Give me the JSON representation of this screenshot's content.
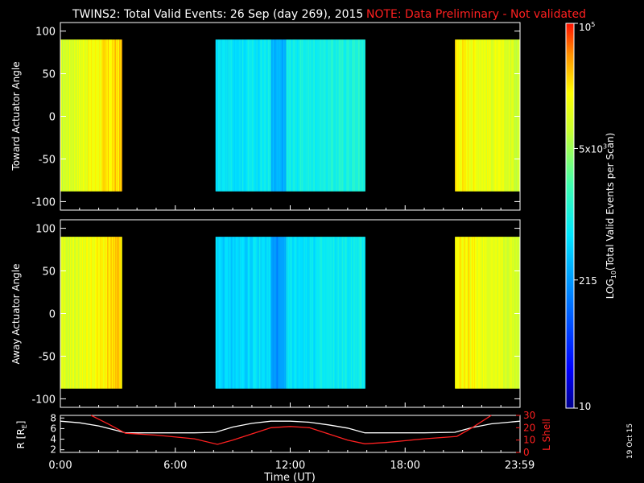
{
  "header": {
    "title": "TWINS2: Total Valid Events: 26 Sep (day 269), 2015",
    "note": "NOTE: Data Preliminary - Not validated"
  },
  "stamp": "19 Oct 15",
  "chart_data": [
    {
      "type": "heatmap",
      "name": "toward-panel",
      "ylabel": "Toward Actuator Angle",
      "ylim": [
        -110,
        110
      ],
      "yticks": [
        100,
        50,
        0,
        -50,
        -100
      ],
      "xlim_hours": [
        0,
        24
      ],
      "angle_range": [
        -88,
        90
      ],
      "data_blocks": [
        {
          "start_hour": 0.0,
          "end_hour": 3.2,
          "log_level_start": 0.74,
          "log_level_end": 0.86
        },
        {
          "start_hour": 8.1,
          "end_hour": 15.9,
          "log_level_start": 0.45,
          "log_level_end": 0.52
        },
        {
          "start_hour": 20.6,
          "end_hour": 23.99,
          "log_level_start": 0.83,
          "log_level_end": 0.74
        }
      ]
    },
    {
      "type": "heatmap",
      "name": "away-panel",
      "ylabel": "Away Actuator Angle",
      "ylim": [
        -110,
        110
      ],
      "yticks": [
        100,
        50,
        0,
        -50,
        -100
      ],
      "xlim_hours": [
        0,
        24
      ],
      "angle_range": [
        -88,
        90
      ],
      "data_blocks": [
        {
          "start_hour": 0.0,
          "end_hour": 3.2,
          "log_level_start": 0.74,
          "log_level_end": 0.86
        },
        {
          "start_hour": 8.1,
          "end_hour": 15.9,
          "log_level_start": 0.42,
          "log_level_end": 0.48
        },
        {
          "start_hour": 20.6,
          "end_hour": 23.99,
          "log_level_start": 0.83,
          "log_level_end": 0.74
        }
      ]
    },
    {
      "type": "line",
      "name": "orbit-panel",
      "xlabel": "Time (UT)",
      "x_ticks": [
        "0:00",
        "6:00",
        "12:00",
        "18:00",
        "23:59"
      ],
      "x_tick_hours": [
        0,
        6,
        12,
        18,
        23.983
      ],
      "left_axis": {
        "label_main": "R [R",
        "label_sub": "E",
        "label_end": "]",
        "ylim": [
          1.5,
          8.5
        ],
        "ticks": [
          8,
          6,
          4,
          2
        ]
      },
      "right_axis": {
        "label": "L Shell",
        "ylim": [
          0,
          30
        ],
        "ticks": [
          30,
          20,
          10,
          0
        ]
      },
      "series": [
        {
          "name": "R",
          "color": "#ffffff",
          "axis": "left",
          "x": [
            0,
            1,
            2,
            3,
            3.4,
            5,
            7,
            8.1,
            9,
            10,
            11,
            12,
            13,
            14,
            15,
            15.9,
            17,
            19,
            20.6,
            21.5,
            22.5,
            23.99
          ],
          "y": [
            7.4,
            7.1,
            6.5,
            5.6,
            5.2,
            5.2,
            5.2,
            5.3,
            6.3,
            7.0,
            7.4,
            7.4,
            7.2,
            6.7,
            6.1,
            5.2,
            5.2,
            5.2,
            5.3,
            6.2,
            6.9,
            7.4
          ]
        },
        {
          "name": "L Shell",
          "color": "#ff2020",
          "axis": "right",
          "x": [
            1.6,
            2.5,
            3.4,
            5,
            7,
            8.2,
            9,
            10,
            11,
            12,
            13,
            14,
            15,
            15.9,
            17,
            19,
            20.7,
            21.5,
            22.5
          ],
          "y": [
            30,
            23,
            15.5,
            14,
            11,
            6.5,
            10,
            15,
            20,
            21,
            20,
            15,
            10,
            7,
            8,
            11,
            13,
            20,
            30
          ]
        }
      ]
    },
    {
      "type": "heatmap",
      "name": "colorbar",
      "label_main": "LOG",
      "label_sub": "10",
      "label_end": "(Total Valid Events per Scan)",
      "scale": "log",
      "range": [
        10,
        100000
      ],
      "ticks": [
        {
          "value": 100000,
          "base": "10",
          "exp": "5"
        },
        {
          "value": 5000,
          "base": "5x10",
          "exp": "3"
        },
        {
          "value": 215,
          "base": "215",
          "exp": ""
        },
        {
          "value": 10,
          "base": "10",
          "exp": ""
        }
      ]
    }
  ]
}
